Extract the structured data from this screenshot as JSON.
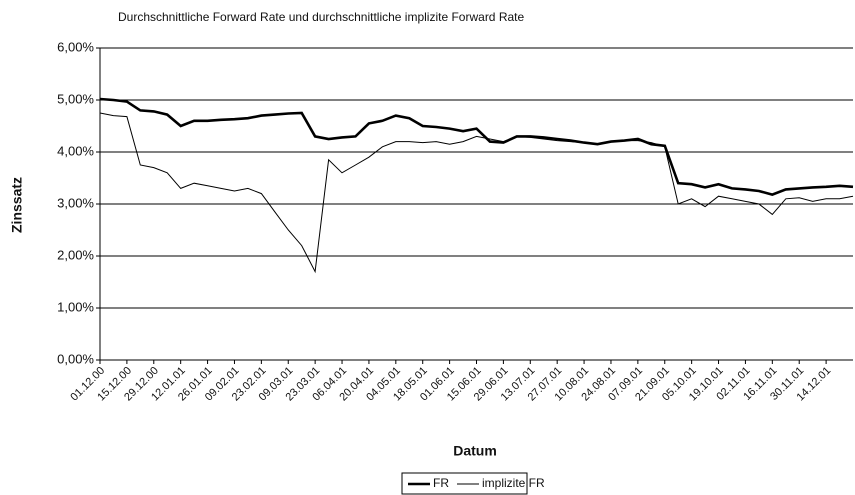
{
  "chart_data": {
    "type": "line",
    "title": "Durchschnittliche Forward Rate und durchschnittliche implizite Forward Rate",
    "x_label": "Datum",
    "y_label": "Zinssatz",
    "categories": [
      "01.12.00",
      null,
      "15.12.00",
      null,
      "29.12.00",
      null,
      "12.01.01",
      null,
      "26.01.01",
      null,
      "09.02.01",
      null,
      "23.02.01",
      null,
      "09.03.01",
      null,
      "23.03.01",
      null,
      "06.04.01",
      null,
      "20.04.01",
      null,
      "04.05.01",
      null,
      "18.05.01",
      null,
      "01.06.01",
      null,
      "15.06.01",
      null,
      "29.06.01",
      null,
      "13.07.01",
      null,
      "27.07.01",
      null,
      "10.08.01",
      null,
      "24.08.01",
      null,
      "07.09.01",
      null,
      "21.09.01",
      null,
      "05.10.01",
      null,
      "19.10.01",
      null,
      "02.11.01",
      null,
      "16.11.01",
      null,
      "30.11.01",
      null,
      "14.12.01",
      null,
      null
    ],
    "series": [
      {
        "name": "FR",
        "color": "#000000",
        "width": 2.6,
        "values": [
          5.02,
          5.0,
          4.97,
          4.8,
          4.78,
          4.72,
          4.5,
          4.6,
          4.6,
          4.62,
          4.63,
          4.65,
          4.7,
          4.72,
          4.74,
          4.75,
          4.3,
          4.25,
          4.28,
          4.3,
          4.55,
          4.6,
          4.7,
          4.65,
          4.5,
          4.48,
          4.45,
          4.4,
          4.45,
          4.2,
          4.18,
          4.3,
          4.3,
          4.28,
          4.25,
          4.22,
          4.18,
          4.15,
          4.2,
          4.22,
          4.25,
          4.15,
          4.12,
          3.4,
          3.38,
          3.32,
          3.38,
          3.3,
          3.28,
          3.25,
          3.18,
          3.28,
          3.3,
          3.32,
          3.33,
          3.35,
          3.33
        ]
      },
      {
        "name": "implizite FR",
        "color": "#000000",
        "width": 1,
        "values": [
          4.75,
          4.7,
          4.68,
          3.75,
          3.7,
          3.6,
          3.3,
          3.4,
          3.35,
          3.3,
          3.25,
          3.3,
          3.2,
          2.85,
          2.5,
          2.2,
          1.7,
          3.85,
          3.6,
          3.75,
          3.9,
          4.1,
          4.2,
          4.2,
          4.18,
          4.2,
          4.15,
          4.2,
          4.3,
          4.25,
          4.2,
          4.3,
          4.28,
          4.25,
          4.22,
          4.2,
          4.18,
          4.15,
          4.2,
          4.22,
          4.22,
          4.18,
          4.1,
          3.0,
          3.1,
          2.95,
          3.15,
          3.1,
          3.05,
          3.0,
          2.8,
          3.1,
          3.12,
          3.05,
          3.1,
          3.1,
          3.15
        ]
      }
    ],
    "ylim": [
      0,
      6
    ],
    "yticks": [
      {
        "value": 0,
        "label": "0,00%"
      },
      {
        "value": 1,
        "label": "1,00%"
      },
      {
        "value": 2,
        "label": "2,00%"
      },
      {
        "value": 3,
        "label": "3,00%"
      },
      {
        "value": 4,
        "label": "4,00%"
      },
      {
        "value": 5,
        "label": "5,00%"
      },
      {
        "value": 6,
        "label": "6,00%"
      }
    ],
    "grid": true,
    "legend": "bottom"
  }
}
